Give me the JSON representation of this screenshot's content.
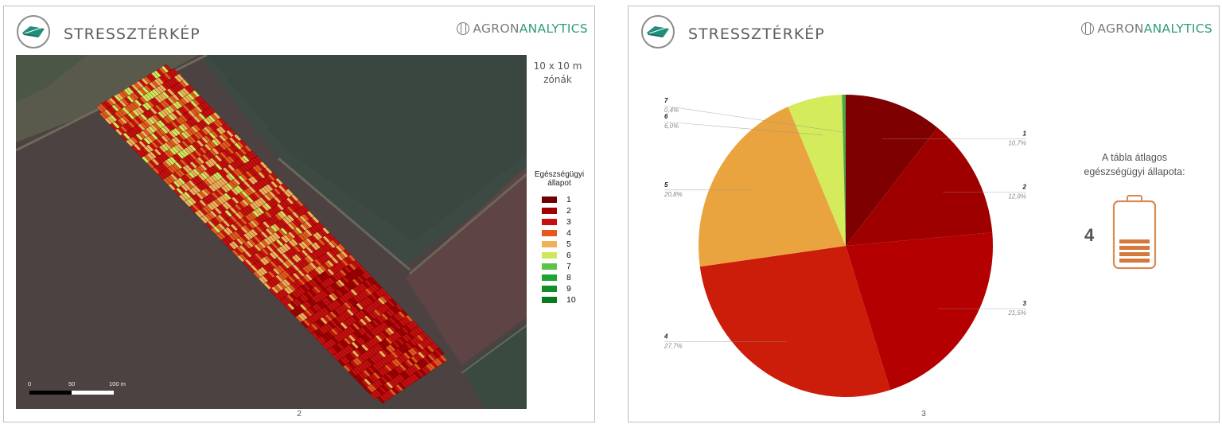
{
  "pages": [
    {
      "title": "STRESSZTÉRKÉP",
      "brand": {
        "part1": "AGRON",
        "part2": "ANALYTICS"
      },
      "zones_label_line1": "10 x 10 m",
      "zones_label_line2": "zónák",
      "legend": {
        "title_line1": "Egészségügyi",
        "title_line2": "állapot",
        "items": [
          {
            "label": "1",
            "color": "#6e0000"
          },
          {
            "label": "2",
            "color": "#a00000"
          },
          {
            "label": "3",
            "color": "#c80e0e"
          },
          {
            "label": "4",
            "color": "#e45a1c"
          },
          {
            "label": "5",
            "color": "#eeb15a"
          },
          {
            "label": "6",
            "color": "#cfe85a"
          },
          {
            "label": "7",
            "color": "#5cc24a"
          },
          {
            "label": "8",
            "color": "#1ea531"
          },
          {
            "label": "9",
            "color": "#148f26"
          },
          {
            "label": "10",
            "color": "#0b7a1e"
          }
        ]
      },
      "scale_bar": {
        "label_0": "0",
        "label_50": "50",
        "label_100": "100 m"
      },
      "page_number": "2"
    },
    {
      "title": "STRESSZTÉRKÉP",
      "brand": {
        "part1": "AGRON",
        "part2": "ANALYTICS"
      },
      "average_label_line1": "A tábla átlagos",
      "average_label_line2": "egészségügyi állapota:",
      "average_value": "4",
      "page_number": "3"
    }
  ],
  "chart_data": {
    "type": "pie",
    "categories": [
      "1",
      "2",
      "3",
      "4",
      "5",
      "6",
      "7"
    ],
    "values": [
      10.7,
      12.9,
      21.5,
      27.7,
      20.8,
      6.0,
      0.4
    ],
    "value_labels": [
      "10,7%",
      "12,9%",
      "21,5%",
      "27,7%",
      "20,8%",
      "6,0%",
      "0,4%"
    ],
    "colors": [
      "#7f0000",
      "#9e0000",
      "#b40000",
      "#cc1c0a",
      "#e9a43f",
      "#d4eb5b",
      "#4aa84a"
    ]
  }
}
